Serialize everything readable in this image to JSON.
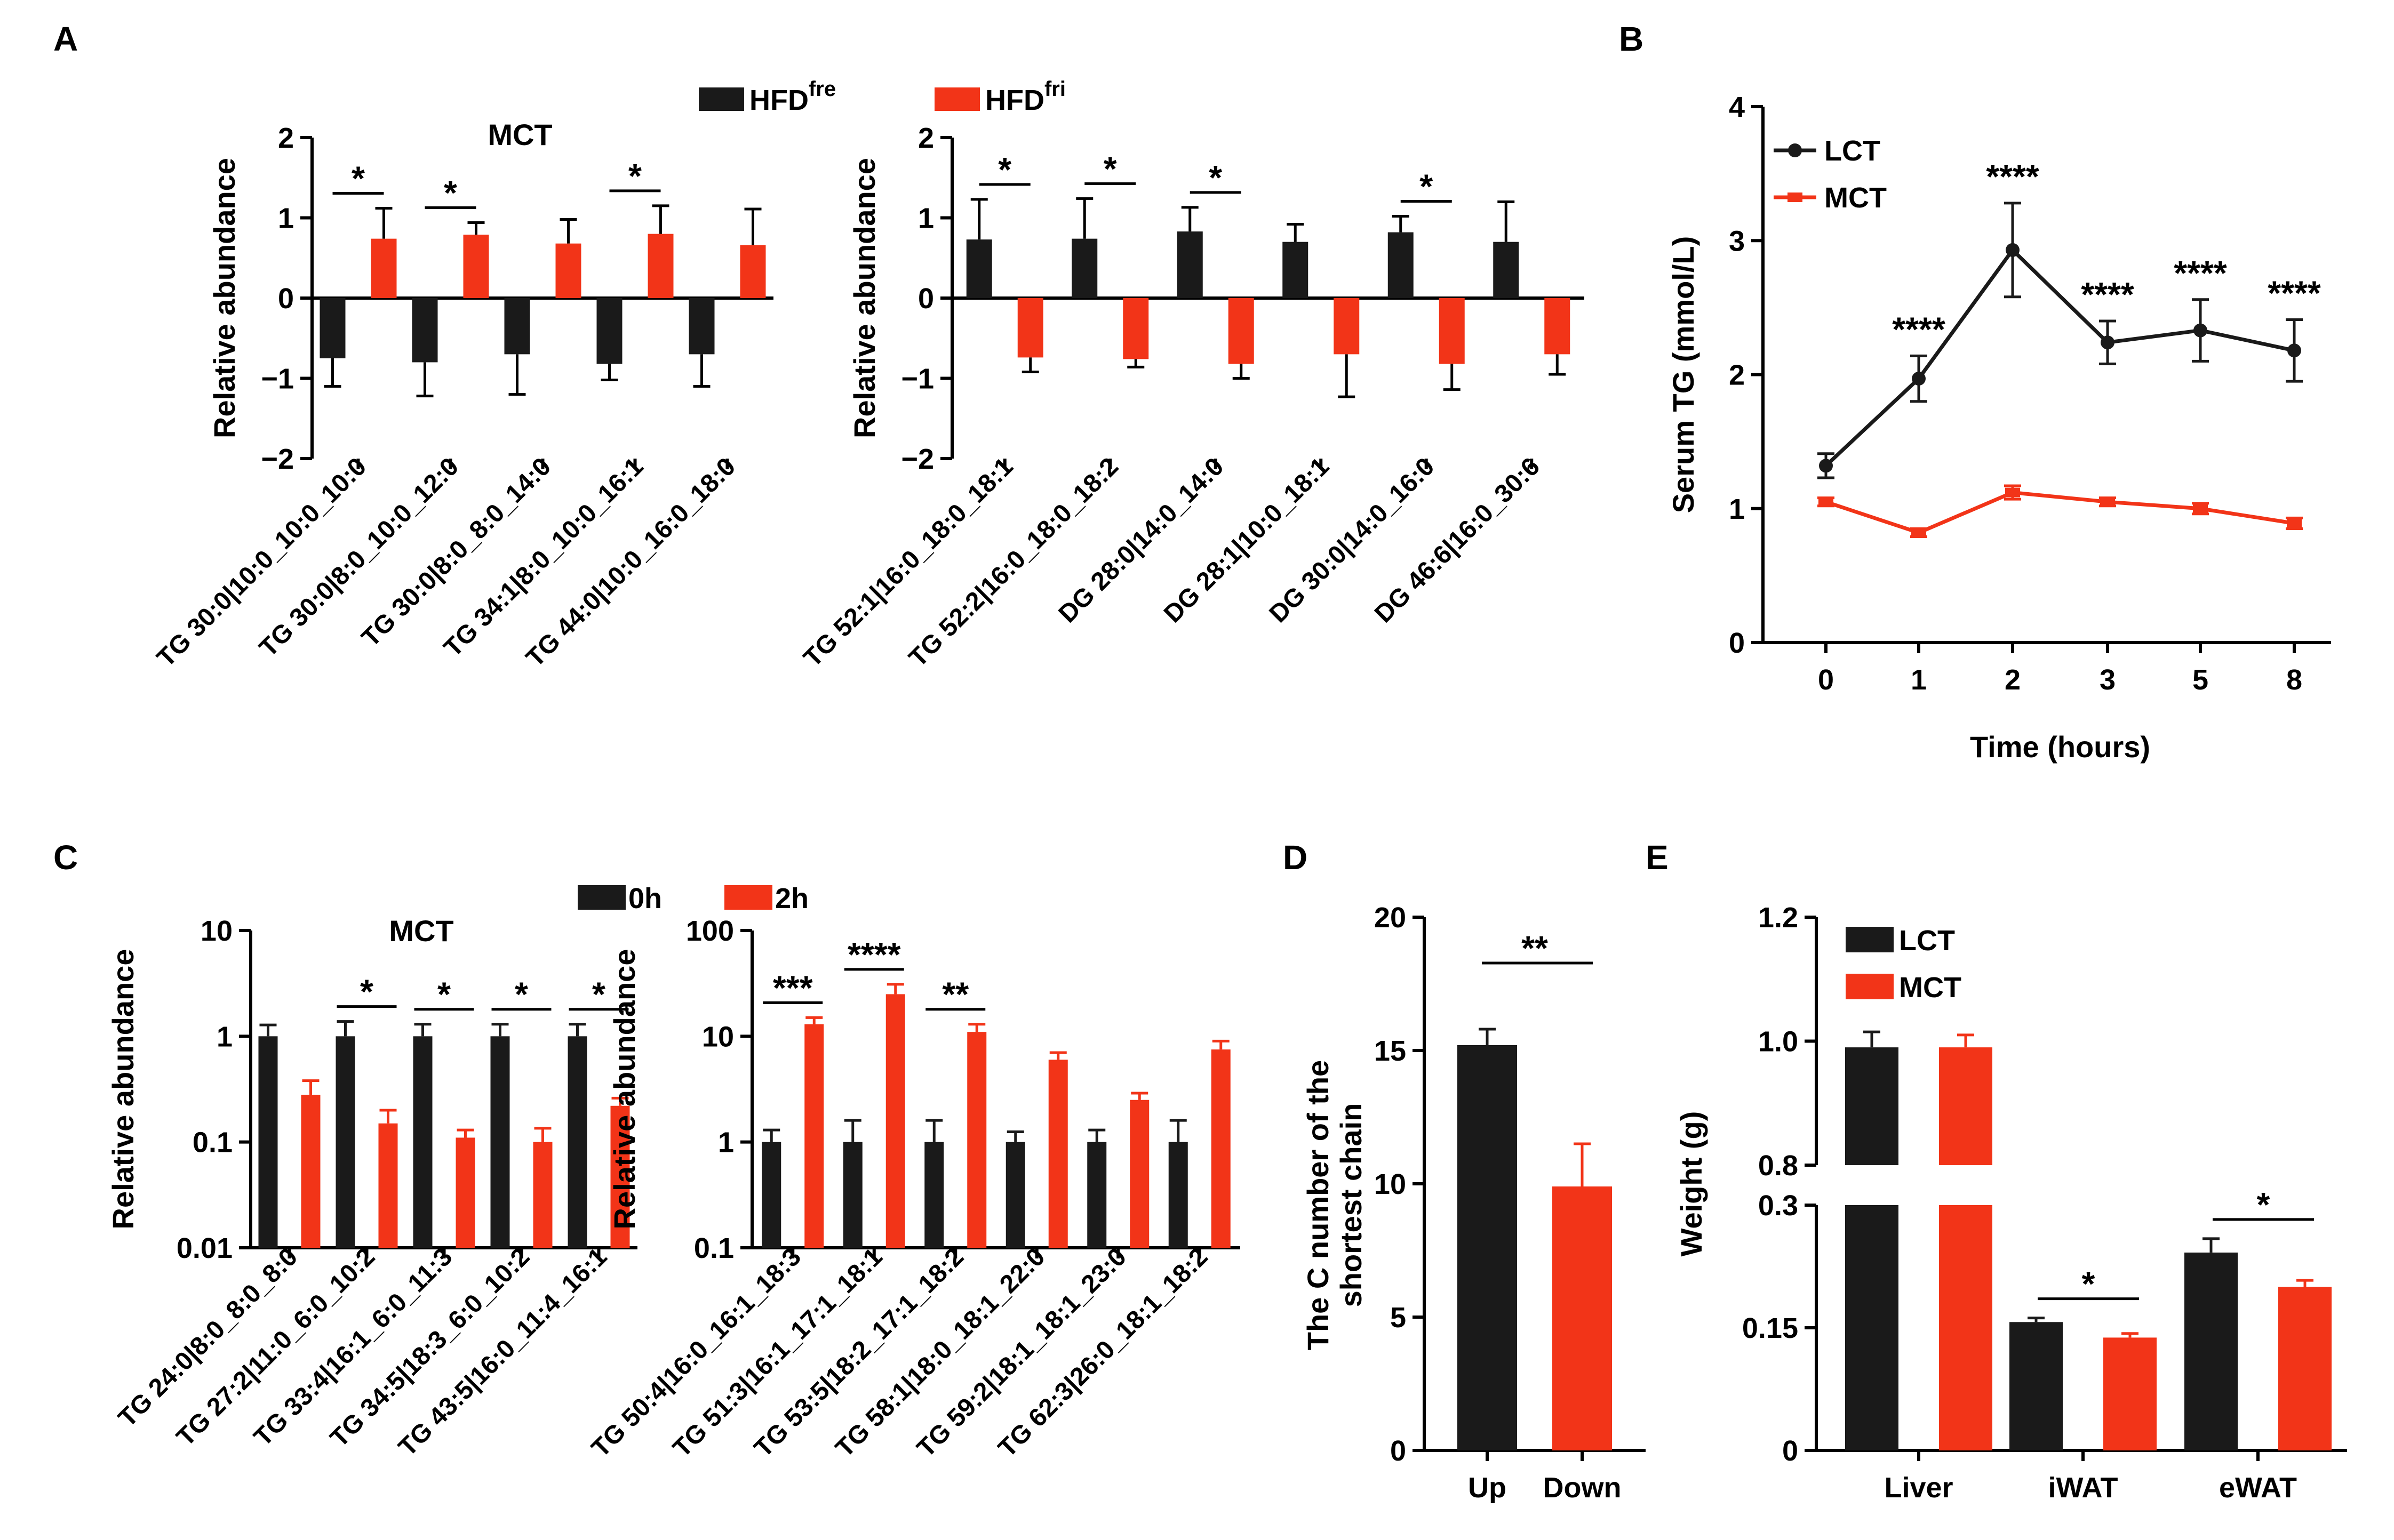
{
  "colors": {
    "black": "#1a1a1a",
    "red": "#f23418",
    "axis": "#000000"
  },
  "legends": {
    "A": [
      {
        "label": "HFD",
        "sup": "fre",
        "color": "#1a1a1a"
      },
      {
        "label": "HFD",
        "sup": "fri",
        "color": "#f23418"
      }
    ],
    "B": [
      {
        "label": "LCT",
        "color": "#1a1a1a"
      },
      {
        "label": "MCT",
        "color": "#f23418"
      }
    ],
    "C": [
      {
        "label": "0h",
        "color": "#1a1a1a"
      },
      {
        "label": "2h",
        "color": "#f23418"
      }
    ],
    "E": [
      {
        "label": "LCT",
        "color": "#1a1a1a"
      },
      {
        "label": "MCT",
        "color": "#f23418"
      }
    ]
  },
  "chart_data": [
    {
      "id": "A1",
      "panel": "A",
      "type": "bar",
      "subtitle": "MCT",
      "ylabel": "Relative abundance",
      "ylim": [
        -2,
        2
      ],
      "yticks": [
        -2,
        -1,
        0,
        1,
        2
      ],
      "ytick_labels": [
        "−2",
        "−1",
        "0",
        "1",
        "2"
      ],
      "categories": [
        "TG 30:0|10:0_10:0_10:0",
        "TG 30:0|8:0_10:0_12:0",
        "TG 30:0|8:0_8:0_14:0",
        "TG 34:1|8:0_10:0_16:1",
        "TG 44:0|10:0_16:0_18:0"
      ],
      "series": [
        {
          "name": "HFDfre",
          "color": "#1a1a1a",
          "values": [
            -0.75,
            -0.8,
            -0.7,
            -0.82,
            -0.7
          ],
          "errors": [
            0.35,
            0.42,
            0.5,
            0.2,
            0.4
          ]
        },
        {
          "name": "HFDfri",
          "color": "#f23418",
          "values": [
            0.74,
            0.79,
            0.68,
            0.8,
            0.66
          ],
          "errors": [
            0.38,
            0.15,
            0.3,
            0.35,
            0.45
          ]
        }
      ],
      "significance": [
        {
          "index": 0,
          "label": "*"
        },
        {
          "index": 1,
          "label": "*"
        },
        {
          "index": 3,
          "label": "*"
        }
      ]
    },
    {
      "id": "A2",
      "panel": "A",
      "type": "bar",
      "ylabel": "Relative abundance",
      "ylim": [
        -2,
        2
      ],
      "yticks": [
        -2,
        -1,
        0,
        1,
        2
      ],
      "ytick_labels": [
        "−2",
        "−1",
        "0",
        "1",
        "2"
      ],
      "categories": [
        "TG 52:1|16:0_18:0_18:1",
        "TG 52:2|16:0_18:0_18:2",
        "DG 28:0|14:0_14:0",
        "DG 28:1|10:0_18:1",
        "DG 30:0|14:0_16:0",
        "DG 46:6|16:0_30:6"
      ],
      "series": [
        {
          "name": "HFDfre",
          "color": "#1a1a1a",
          "values": [
            0.73,
            0.74,
            0.83,
            0.7,
            0.82,
            0.7
          ],
          "errors": [
            0.5,
            0.5,
            0.3,
            0.22,
            0.2,
            0.5
          ]
        },
        {
          "name": "HFDfri",
          "color": "#f23418",
          "values": [
            -0.74,
            -0.76,
            -0.82,
            -0.7,
            -0.82,
            -0.7
          ],
          "errors": [
            0.18,
            0.1,
            0.18,
            0.53,
            0.32,
            0.25
          ]
        }
      ],
      "significance": [
        {
          "index": 0,
          "label": "*"
        },
        {
          "index": 1,
          "label": "*"
        },
        {
          "index": 2,
          "label": "*"
        },
        {
          "index": 4,
          "label": "*"
        }
      ]
    },
    {
      "id": "B",
      "panel": "B",
      "type": "line",
      "xlabel": "Time (hours)",
      "ylabel": "Serum TG (mmol/L)",
      "ylim": [
        0,
        4
      ],
      "yticks": [
        0,
        1,
        2,
        3,
        4
      ],
      "ytick_labels": [
        "0",
        "1",
        "2",
        "3",
        "4"
      ],
      "categories": [
        "0",
        "1",
        "2",
        "3",
        "5",
        "8"
      ],
      "series": [
        {
          "name": "LCT",
          "color": "#1a1a1a",
          "values": [
            1.32,
            1.97,
            2.93,
            2.24,
            2.33,
            2.18
          ],
          "errors": [
            0.09,
            0.17,
            0.35,
            0.16,
            0.23,
            0.23
          ]
        },
        {
          "name": "MCT",
          "color": "#f23418",
          "values": [
            1.05,
            0.82,
            1.12,
            1.05,
            1.0,
            0.89
          ],
          "errors": [
            0.03,
            0.03,
            0.05,
            0.03,
            0.04,
            0.04
          ]
        }
      ],
      "significance": [
        {
          "index": 1,
          "label": "****"
        },
        {
          "index": 2,
          "label": "****"
        },
        {
          "index": 3,
          "label": "****"
        },
        {
          "index": 4,
          "label": "****"
        },
        {
          "index": 5,
          "label": "****"
        }
      ]
    },
    {
      "id": "C1",
      "panel": "C",
      "type": "bar",
      "scale": "log",
      "subtitle": "MCT",
      "ylabel": "Relative abundance",
      "ylim": [
        0.01,
        10
      ],
      "yticks": [
        0.01,
        0.1,
        1,
        10
      ],
      "ytick_labels": [
        "0.01",
        "0.1",
        "1",
        "10"
      ],
      "categories": [
        "TG 24:0|8:0_8:0_8:0",
        "TG 27:2|11:0_6:0_10:2",
        "TG 33:4|16:1_6:0_11:3",
        "TG 34:5|18:3_6:0_10:2",
        "TG 43:5|16:0_11:4_16:1"
      ],
      "series": [
        {
          "name": "0h",
          "color": "#1a1a1a",
          "values": [
            1.0,
            1.0,
            1.0,
            1.0,
            1.0
          ],
          "errors_high": [
            1.28,
            1.38,
            1.3,
            1.3,
            1.3
          ]
        },
        {
          "name": "2h",
          "color": "#f23418",
          "values": [
            0.28,
            0.15,
            0.11,
            0.1,
            0.22
          ],
          "errors_high": [
            0.38,
            0.2,
            0.13,
            0.135,
            0.26
          ]
        }
      ],
      "significance": [
        {
          "index": 1,
          "label": "*"
        },
        {
          "index": 2,
          "label": "*"
        },
        {
          "index": 3,
          "label": "*"
        },
        {
          "index": 4,
          "label": "*"
        }
      ]
    },
    {
      "id": "C2",
      "panel": "C",
      "type": "bar",
      "scale": "log",
      "ylabel": "Relative abundance",
      "ylim": [
        0.1,
        100
      ],
      "yticks": [
        0.1,
        1,
        10,
        100
      ],
      "ytick_labels": [
        "0.1",
        "1",
        "10",
        "100"
      ],
      "categories": [
        "TG 50:4|16:0_16:1_18:3",
        "TG 51:3|16:1_17:1_18:1",
        "TG 53:5|18:2_17:1_18:2",
        "TG 58:1|18:0_18:1_22:0",
        "TG 59:2|18:1_18:1_23:0",
        "TG 62:3|26:0_18:1_18:2"
      ],
      "series": [
        {
          "name": "0h",
          "color": "#1a1a1a",
          "values": [
            1.0,
            1.0,
            1.0,
            1.0,
            1.0,
            1.0
          ],
          "errors_high": [
            1.3,
            1.6,
            1.6,
            1.25,
            1.3,
            1.6
          ]
        },
        {
          "name": "2h",
          "color": "#f23418",
          "values": [
            13,
            25,
            11,
            6,
            2.5,
            7.5
          ],
          "errors_high": [
            15,
            31,
            13,
            7,
            2.9,
            9
          ]
        }
      ],
      "significance": [
        {
          "index": 0,
          "label": "***"
        },
        {
          "index": 1,
          "label": "****"
        },
        {
          "index": 2,
          "label": "**"
        }
      ]
    },
    {
      "id": "D",
      "panel": "D",
      "type": "bar",
      "ylabel": "The C number of the shortest chain",
      "ylim": [
        0,
        20
      ],
      "yticks": [
        0,
        5,
        10,
        15,
        20
      ],
      "ytick_labels": [
        "0",
        "5",
        "10",
        "15",
        "20"
      ],
      "categories": [
        "Up",
        "Down"
      ],
      "values": [
        15.2,
        9.9
      ],
      "errors": [
        0.6,
        1.6
      ],
      "colors": [
        "#1a1a1a",
        "#f23418"
      ],
      "significance": [
        {
          "label": "**"
        }
      ]
    },
    {
      "id": "E",
      "panel": "E",
      "type": "bar",
      "broken_axis": true,
      "ylabel": "Weight (g)",
      "ylim_lower": [
        0,
        0.3
      ],
      "yticks_lower": [
        0,
        0.15,
        0.3
      ],
      "ytick_labels_lower": [
        "0",
        "0.15",
        "0.3"
      ],
      "ylim_upper": [
        0.8,
        1.2
      ],
      "yticks_upper": [
        0.8,
        1.0,
        1.2
      ],
      "ytick_labels_upper": [
        "0.8",
        "1.0",
        "1.2"
      ],
      "categories": [
        "Liver",
        "iWAT",
        "eWAT"
      ],
      "series": [
        {
          "name": "LCT",
          "color": "#1a1a1a",
          "values": [
            0.99,
            0.157,
            0.242
          ],
          "errors": [
            0.025,
            0.005,
            0.017
          ]
        },
        {
          "name": "MCT",
          "color": "#f23418",
          "values": [
            0.99,
            0.138,
            0.2
          ],
          "errors": [
            0.02,
            0.005,
            0.008
          ]
        }
      ],
      "significance": [
        {
          "index": 1,
          "label": "*"
        },
        {
          "index": 2,
          "label": "*"
        }
      ]
    }
  ],
  "panel_labels": [
    "A",
    "B",
    "C",
    "D",
    "E"
  ]
}
